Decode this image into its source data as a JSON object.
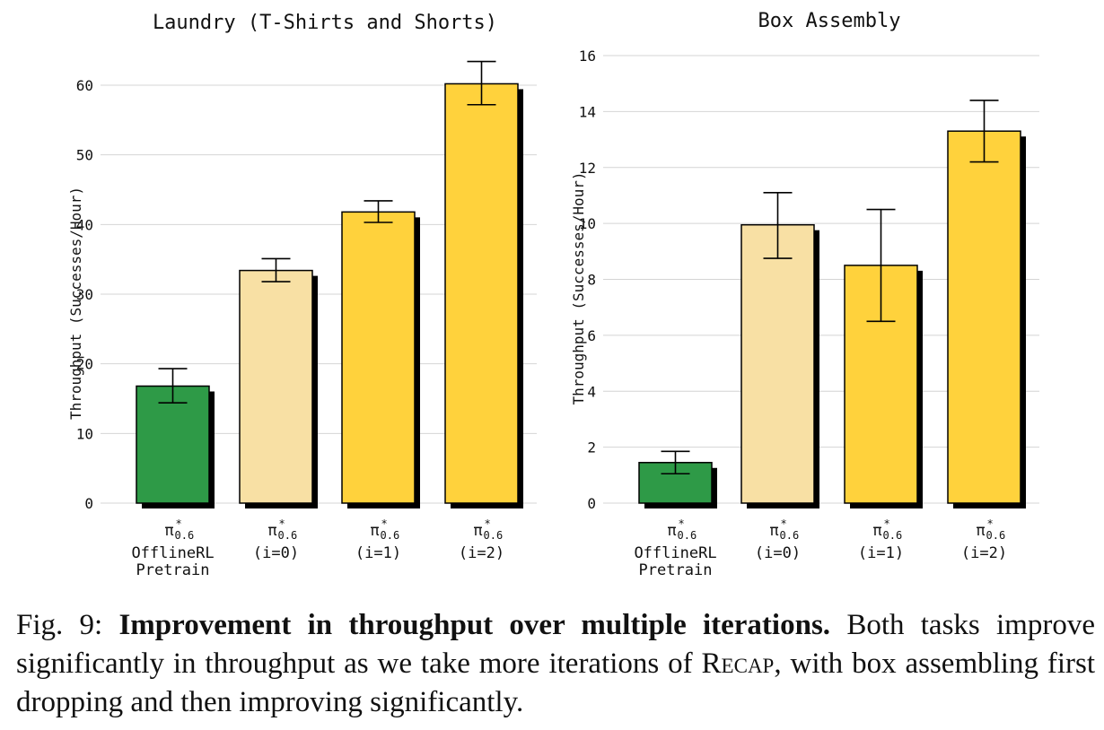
{
  "chart_data": [
    {
      "type": "bar",
      "title": "Laundry (T-Shirts and Shorts)",
      "ylabel": "Throughput (Successes/Hour)",
      "xlabel": "",
      "ylim": [
        0,
        62
      ],
      "yticks": [
        0,
        10,
        20,
        30,
        40,
        50,
        60
      ],
      "grid": true,
      "categories": [
        {
          "symbol": "π",
          "sup": "*",
          "sub": "0.6",
          "lines": [
            "OfflineRL",
            "Pretrain"
          ]
        },
        {
          "symbol": "π",
          "sup": "*",
          "sub": "0.6",
          "lines": [
            "(i=0)"
          ]
        },
        {
          "symbol": "π",
          "sup": "*",
          "sub": "0.6",
          "lines": [
            "(i=1)"
          ]
        },
        {
          "symbol": "π",
          "sup": "*",
          "sub": "0.6",
          "lines": [
            "(i=2)"
          ]
        }
      ],
      "values": [
        16.8,
        33.4,
        41.8,
        60.2
      ],
      "err_low": [
        14.4,
        31.8,
        40.3,
        57.2
      ],
      "err_high": [
        19.3,
        35.1,
        43.4,
        63.4
      ],
      "colors": [
        "#2e9a47",
        "#f8e0a4",
        "#ffd23c",
        "#ffd23c"
      ]
    },
    {
      "type": "bar",
      "title": "Box Assembly",
      "ylabel": "Throughput (Successes/Hour)",
      "xlabel": "",
      "ylim": [
        0,
        16
      ],
      "yticks": [
        0,
        2,
        4,
        6,
        8,
        10,
        12,
        14,
        16
      ],
      "grid": true,
      "categories": [
        {
          "symbol": "π",
          "sup": "*",
          "sub": "0.6",
          "lines": [
            "OfflineRL",
            "Pretrain"
          ]
        },
        {
          "symbol": "π",
          "sup": "*",
          "sub": "0.6",
          "lines": [
            "(i=0)"
          ]
        },
        {
          "symbol": "π",
          "sup": "*",
          "sub": "0.6",
          "lines": [
            "(i=1)"
          ]
        },
        {
          "symbol": "π",
          "sup": "*",
          "sub": "0.6",
          "lines": [
            "(i=2)"
          ]
        }
      ],
      "values": [
        1.45,
        9.95,
        8.5,
        13.3
      ],
      "err_low": [
        1.05,
        8.75,
        6.5,
        12.2
      ],
      "err_high": [
        1.85,
        11.1,
        10.5,
        14.4
      ],
      "colors": [
        "#2e9a47",
        "#f8e0a4",
        "#ffd23c",
        "#ffd23c"
      ]
    }
  ],
  "caption": {
    "label": "Fig. 9:",
    "bold": "Improvement in throughput over multiple iterations.",
    "text_before": "Both tasks improve significantly in throughput as we take more iterations of",
    "method": "Recap",
    "text_after": ", with box assembling first dropping and then improving significantly."
  }
}
